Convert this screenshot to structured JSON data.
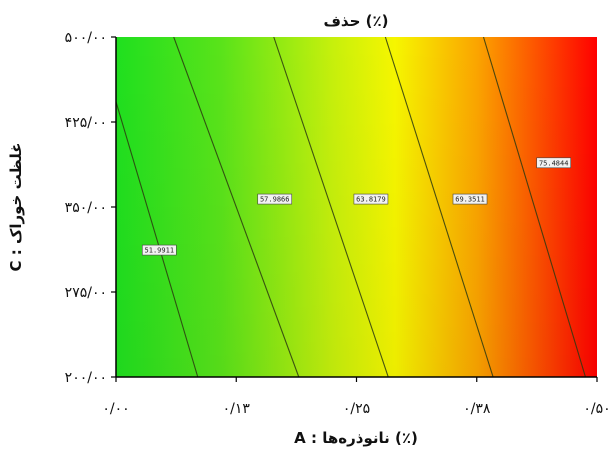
{
  "chart_data": {
    "type": "contour",
    "title": "حذف (٪)",
    "xlabel": "A : نانوذره‌ها (٪)",
    "ylabel": "C : غلظت خوراک",
    "xlim": [
      0,
      0.5
    ],
    "ylim": [
      200,
      500
    ],
    "x_ticks": [
      {
        "value": 0.0,
        "label": "۰/۰۰"
      },
      {
        "value": 0.125,
        "label": "۰/۱۳"
      },
      {
        "value": 0.25,
        "label": "۰/۲۵"
      },
      {
        "value": 0.375,
        "label": "۰/۳۸"
      },
      {
        "value": 0.5,
        "label": "۰/۵۰"
      }
    ],
    "y_ticks": [
      {
        "value": 200,
        "label": "۲۰۰/۰۰"
      },
      {
        "value": 275,
        "label": "۲۷۵/۰۰"
      },
      {
        "value": 350,
        "label": "۳۵۰/۰۰"
      },
      {
        "value": 425,
        "label": "۴۲۵/۰۰"
      },
      {
        "value": 500,
        "label": "۵۰۰/۰۰"
      }
    ],
    "color_scale": [
      "#1fe01f",
      "#f6f600",
      "#ff0000"
    ],
    "contours": [
      {
        "label": "51.9911",
        "label_x": 0.045,
        "label_y": 312,
        "x_at_ymin": 0.085,
        "x_at_ymax": -0.02
      },
      {
        "label": "57.9866",
        "label_x": 0.165,
        "label_y": 357,
        "x_at_ymin": 0.19,
        "x_at_ymax": 0.06
      },
      {
        "label": "63.8179",
        "label_x": 0.265,
        "label_y": 357,
        "x_at_ymin": 0.283,
        "x_at_ymax": 0.164
      },
      {
        "label": "69.3511",
        "label_x": 0.368,
        "label_y": 357,
        "x_at_ymin": 0.392,
        "x_at_ymax": 0.28
      },
      {
        "label": "75.4844",
        "label_x": 0.455,
        "label_y": 389,
        "x_at_ymin": 0.488,
        "x_at_ymax": 0.382
      }
    ]
  }
}
